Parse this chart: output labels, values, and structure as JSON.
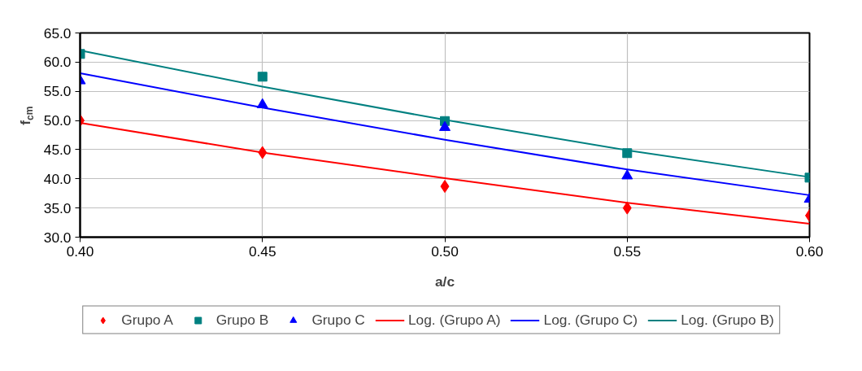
{
  "chart_data": {
    "type": "scatter",
    "xlabel": "a/c",
    "ylabel": "f$_{cm}$",
    "x": [
      0.4,
      0.45,
      0.5,
      0.55,
      0.6
    ],
    "xlim": [
      0.4,
      0.6
    ],
    "xticks": [
      {
        "value": 0.4,
        "label": "0.40"
      },
      {
        "value": 0.45,
        "label": "0.45"
      },
      {
        "value": 0.5,
        "label": "0.50"
      },
      {
        "value": 0.55,
        "label": "0.55"
      },
      {
        "value": 0.6,
        "label": "0.60"
      }
    ],
    "ylim": [
      30,
      65
    ],
    "yticks": [
      {
        "value": 30,
        "label": "30.0"
      },
      {
        "value": 35,
        "label": "35.0"
      },
      {
        "value": 40,
        "label": "40.0"
      },
      {
        "value": 45,
        "label": "45.0"
      },
      {
        "value": 50,
        "label": "50.0"
      },
      {
        "value": 55,
        "label": "55.0"
      },
      {
        "value": 60,
        "label": "60.0"
      },
      {
        "value": 65,
        "label": "65.0"
      }
    ],
    "grid": true,
    "legend": "bottom",
    "series": [
      {
        "name": "Grupo A",
        "marker": "diamond",
        "color": "#ff0000",
        "values": [
          50.0,
          44.5,
          38.7,
          35.0,
          33.7
        ]
      },
      {
        "name": "Grupo B",
        "marker": "square",
        "color": "#008080",
        "values": [
          61.4,
          57.5,
          49.9,
          44.4,
          40.2
        ]
      },
      {
        "name": "Grupo C",
        "marker": "triangle",
        "color": "#0000ff",
        "values": [
          56.8,
          52.7,
          48.8,
          40.5,
          36.5
        ]
      },
      {
        "name": "Log. (Grupo A)",
        "type": "line",
        "marker": "none",
        "color": "#ff0000",
        "values": [
          49.6,
          44.5,
          40.1,
          35.9,
          32.3
        ]
      },
      {
        "name": "Log. (Grupo C)",
        "type": "line",
        "marker": "none",
        "color": "#0000ff",
        "values": [
          58.1,
          52.2,
          46.7,
          41.6,
          37.2
        ]
      },
      {
        "name": "Log. (Grupo B)",
        "type": "line",
        "marker": "none",
        "color": "#008080",
        "values": [
          62.0,
          55.8,
          50.1,
          44.9,
          40.3
        ]
      }
    ]
  }
}
